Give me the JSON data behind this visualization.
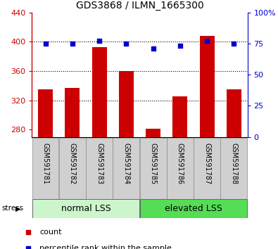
{
  "title": "GDS3868 / ILMN_1665300",
  "samples": [
    "GSM591781",
    "GSM591782",
    "GSM591783",
    "GSM591784",
    "GSM591785",
    "GSM591786",
    "GSM591787",
    "GSM591788"
  ],
  "counts": [
    335,
    337,
    393,
    360,
    281,
    325,
    408,
    335
  ],
  "percentile_ranks": [
    75,
    75,
    77,
    75,
    71,
    73,
    77,
    75
  ],
  "ylim_left": [
    270,
    440
  ],
  "ylim_right": [
    0,
    100
  ],
  "yticks_left": [
    280,
    320,
    360,
    400,
    440
  ],
  "yticks_right": [
    0,
    25,
    50,
    75,
    100
  ],
  "bar_color": "#cc0000",
  "dot_color": "#0000cc",
  "bar_width": 0.55,
  "legend_items": [
    [
      "count",
      "#cc0000"
    ],
    [
      "percentile rank within the sample",
      "#0000cc"
    ]
  ],
  "stress_label": "stress",
  "grid_lines": [
    320,
    360,
    400
  ],
  "normal_lss_color": "#ccf5cc",
  "elevated_lss_color": "#55dd55",
  "sample_box_color": "#d0d0d0",
  "title_fontsize": 10,
  "tick_fontsize": 8,
  "label_fontsize": 8,
  "group_fontsize": 9
}
